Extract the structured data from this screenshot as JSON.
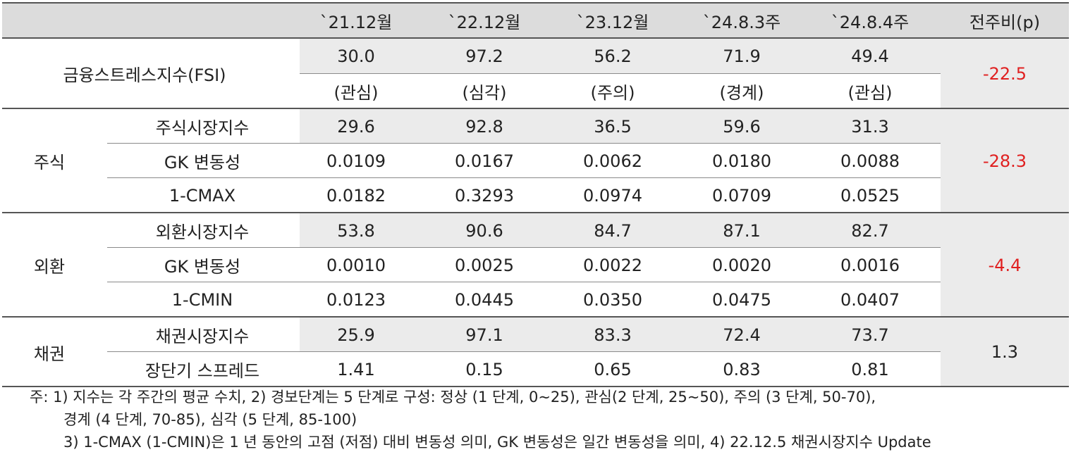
{
  "header": {
    "columns": [
      "`21.12월",
      "`22.12월",
      "`23.12월",
      "`24.8.3주",
      "`24.8.4주",
      "전주비(p)"
    ]
  },
  "fsi": {
    "label": "금융스트레스지수(FSI)",
    "values": [
      "30.0",
      "97.2",
      "56.2",
      "71.9",
      "49.4"
    ],
    "levels": [
      "(관심)",
      "(심각)",
      "(주의)",
      "(경계)",
      "(관심)"
    ],
    "change": "-22.5"
  },
  "groups": [
    {
      "name": "주식",
      "change": "-28.3",
      "rows": [
        {
          "label": "주식시장지수",
          "values": [
            "29.6",
            "92.8",
            "36.5",
            "59.6",
            "31.3"
          ]
        },
        {
          "label": "GK 변동성",
          "values": [
            "0.0109",
            "0.0167",
            "0.0062",
            "0.0180",
            "0.0088"
          ]
        },
        {
          "label": "1-CMAX",
          "values": [
            "0.0182",
            "0.3293",
            "0.0974",
            "0.0709",
            "0.0525"
          ]
        }
      ]
    },
    {
      "name": "외환",
      "change": "-4.4",
      "rows": [
        {
          "label": "외환시장지수",
          "values": [
            "53.8",
            "90.6",
            "84.7",
            "87.1",
            "82.7"
          ]
        },
        {
          "label": "GK 변동성",
          "values": [
            "0.0010",
            "0.0025",
            "0.0022",
            "0.0020",
            "0.0016"
          ]
        },
        {
          "label": "1-CMIN",
          "values": [
            "0.0123",
            "0.0445",
            "0.0350",
            "0.0475",
            "0.0407"
          ]
        }
      ]
    },
    {
      "name": "채권",
      "change": "1.3",
      "rows": [
        {
          "label": "채권시장지수",
          "values": [
            "25.9",
            "97.1",
            "83.3",
            "72.4",
            "73.7"
          ]
        },
        {
          "label": "장단기 스프레드",
          "values": [
            "1.41",
            "0.15",
            "0.65",
            "0.83",
            "0.81"
          ]
        }
      ]
    }
  ],
  "notes": [
    "주: 1) 지수는 각 주간의 평균 수치, 2) 경보단계는 5 단계로 구성: 정상 (1 단계, 0~25), 관심(2 단계, 25~50), 주의 (3 단계, 50-70),",
    "경계 (4 단계, 70-85), 심각 (5 단계, 85-100)",
    "3) 1-CMAX (1-CMIN)은 1 년 동안의 고점 (저점) 대비 변동성 의미, GK 변동성은 일간 변동성을 의미, 4) 22.12.5 채권시장지수 Update"
  ],
  "colors": {
    "header_bg": "#dcdcdc",
    "shade_bg": "#ebebeb",
    "negative": "#e02020"
  }
}
